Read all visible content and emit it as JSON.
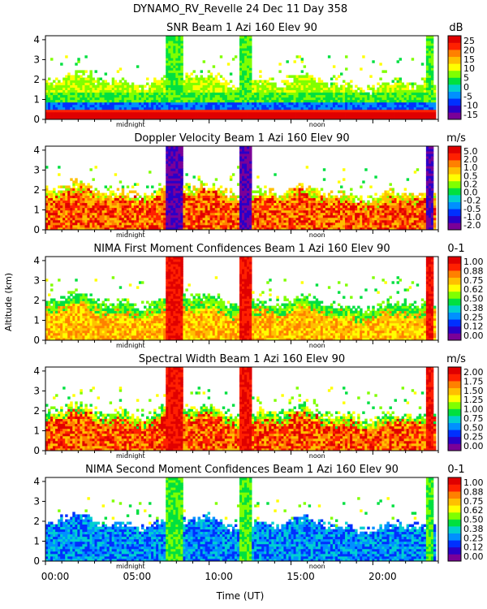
{
  "figure_title": "DYNAMO_RV_Revelle  24 Dec 11 Day 358",
  "y_axis_label": "Altitude (km)",
  "x_axis_label": "Time (UT)",
  "x_ticks": [
    "00:00",
    "05:00",
    "10:00",
    "15:00",
    "20:00"
  ],
  "night_labels": [
    "midnight",
    "noon"
  ],
  "chart_data": [
    {
      "type": "heatmap",
      "title": "SNR Beam 1 Azi 160 Elev 90",
      "unit": "dB",
      "colorbar_ticks": [
        "25",
        "20",
        "15",
        "10",
        "5",
        "0",
        "-5",
        "-10",
        "-15"
      ],
      "xlim_hours": [
        0,
        24
      ],
      "ylim_km": [
        0,
        4.2
      ],
      "y_ticks": [
        "0",
        "1",
        "2",
        "3",
        "4"
      ]
    },
    {
      "type": "heatmap",
      "title": "Doppler Velocity Beam 1 Azi 160 Elev 90",
      "unit": "m/s",
      "colorbar_ticks": [
        "5.0",
        "2.0",
        "1.0",
        "0.5",
        "0.2",
        "0.0",
        "-0.2",
        "-0.5",
        "-1.0",
        "-2.0"
      ],
      "xlim_hours": [
        0,
        24
      ],
      "ylim_km": [
        0,
        4.2
      ],
      "y_ticks": [
        "0",
        "1",
        "2",
        "3",
        "4"
      ]
    },
    {
      "type": "heatmap",
      "title": "NIMA First Moment Confidences Beam 1 Azi 160 Elev 90",
      "unit": "0-1",
      "colorbar_ticks": [
        "1.00",
        "0.88",
        "0.75",
        "0.62",
        "0.50",
        "0.38",
        "0.25",
        "0.12",
        "0.00"
      ],
      "xlim_hours": [
        0,
        24
      ],
      "ylim_km": [
        0,
        4.2
      ],
      "y_ticks": [
        "0",
        "1",
        "2",
        "3",
        "4"
      ]
    },
    {
      "type": "heatmap",
      "title": "Spectral Width Beam 1 Azi 160 Elev 90",
      "unit": "m/s",
      "colorbar_ticks": [
        "2.00",
        "1.75",
        "1.50",
        "1.25",
        "1.00",
        "0.75",
        "0.50",
        "0.25",
        "0.00"
      ],
      "xlim_hours": [
        0,
        24
      ],
      "ylim_km": [
        0,
        4.2
      ],
      "y_ticks": [
        "0",
        "1",
        "2",
        "3",
        "4"
      ]
    },
    {
      "type": "heatmap",
      "title": "NIMA Second Moment Confidences Beam 1 Azi 160 Elev 90",
      "unit": "0-1",
      "colorbar_ticks": [
        "1.00",
        "0.88",
        "0.75",
        "0.62",
        "0.50",
        "0.38",
        "0.25",
        "0.12",
        "0.00"
      ],
      "xlim_hours": [
        0,
        24
      ],
      "ylim_km": [
        0,
        4.2
      ],
      "y_ticks": [
        "0",
        "1",
        "2",
        "3",
        "4"
      ]
    }
  ],
  "colors": {
    "scale": [
      "#7a0098",
      "#2a00c8",
      "#0030ff",
      "#0090ff",
      "#00d0d0",
      "#00e040",
      "#80ff00",
      "#ffff00",
      "#ffc000",
      "#ff8000",
      "#ff2000",
      "#e00000"
    ]
  }
}
